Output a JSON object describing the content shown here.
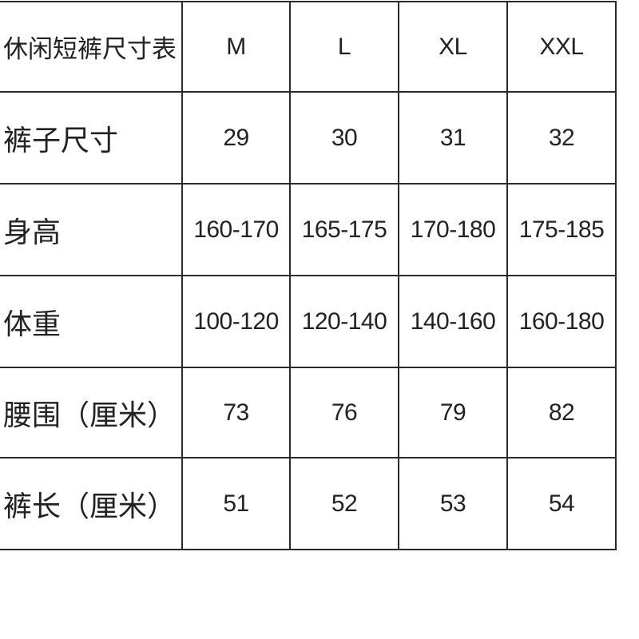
{
  "table": {
    "title": "休闲短裤尺寸表",
    "sizes": [
      "M",
      "L",
      "XL",
      "XXL"
    ],
    "rows": [
      {
        "label": "裤子尺寸",
        "values": [
          "29",
          "30",
          "31",
          "32"
        ]
      },
      {
        "label": "身高",
        "values": [
          "160-170",
          "165-175",
          "170-180",
          "175-185"
        ]
      },
      {
        "label": "体重",
        "values": [
          "100-120",
          "120-140",
          "140-160",
          "160-180"
        ]
      },
      {
        "label": "腰围（厘米）",
        "values": [
          "73",
          "76",
          "79",
          "82"
        ]
      },
      {
        "label": "裤长（厘米）",
        "values": [
          "51",
          "52",
          "53",
          "54"
        ]
      }
    ]
  }
}
